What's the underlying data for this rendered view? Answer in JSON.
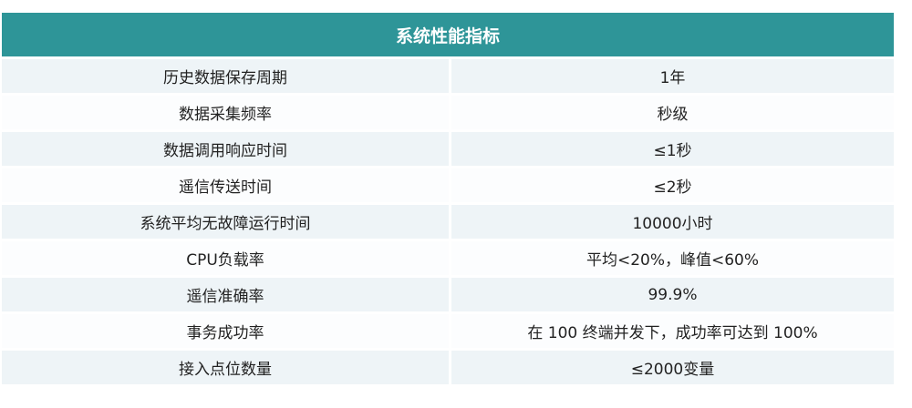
{
  "title": "系统性能指标",
  "rows": [
    {
      "label": "历史数据保存周期",
      "value": "1年"
    },
    {
      "label": "数据采集频率",
      "value": "秒级"
    },
    {
      "label": "数据调用响应时间",
      "value": "≤1秒"
    },
    {
      "label": "遥信传送时间",
      "value": "≤2秒"
    },
    {
      "label": "系统平均无故障运行时间",
      "value": "10000小时"
    },
    {
      "label": "CPU负载率",
      "value": "平均<20%，峰值<60%"
    },
    {
      "label": "遥信准确率",
      "value": "99.9%"
    },
    {
      "label": "事务成功率",
      "value": "在 100 终端并发下，成功率可达到 100%"
    },
    {
      "label": "接入点位数量",
      "value": "≤2000变量"
    }
  ],
  "colors": {
    "header": "#2e9598",
    "row_alt": "#eef4f7"
  }
}
